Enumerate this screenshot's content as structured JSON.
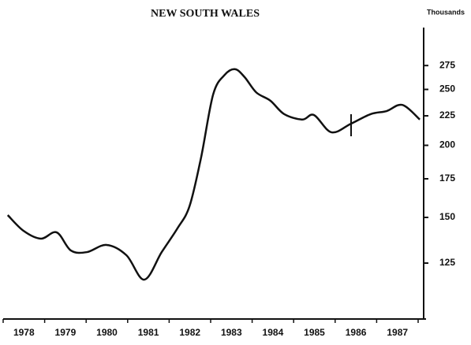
{
  "chart_data": {
    "type": "line",
    "title": "NEW SOUTH WALES",
    "y_axis_label": "Thousands",
    "categories": [
      "1978",
      "1979",
      "1980",
      "1981",
      "1982",
      "1983",
      "1984",
      "1985",
      "1986",
      "1987"
    ],
    "xlim": [
      1978,
      1988
    ],
    "xticks": [
      1978,
      1979,
      1980,
      1981,
      1982,
      1983,
      1984,
      1985,
      1986,
      1987,
      1988
    ],
    "ylim": [
      100,
      320
    ],
    "yticks": [
      125,
      150,
      175,
      200,
      225,
      250,
      275
    ],
    "log_scale": true,
    "series": [
      {
        "color": "#111111",
        "x": [
          1978.11,
          1978.49,
          1978.91,
          1979.29,
          1979.63,
          1980.02,
          1980.49,
          1980.97,
          1981.4,
          1981.82,
          1982.2,
          1982.49,
          1982.77,
          1983.06,
          1983.34,
          1983.59,
          1983.82,
          1984.1,
          1984.44,
          1984.77,
          1985.21,
          1985.49,
          1985.91,
          1986.38,
          1986.86,
          1987.24,
          1987.62,
          1988.04
        ],
        "values": [
          151.4,
          142.2,
          137.8,
          141.3,
          131.5,
          130.6,
          134.4,
          129,
          117,
          130.6,
          143.6,
          156.8,
          190.6,
          245,
          265,
          271,
          262.5,
          247,
          239,
          226.6,
          221.7,
          225.7,
          210.7,
          218,
          226.6,
          229.3,
          235,
          221.7
        ]
      }
    ]
  }
}
